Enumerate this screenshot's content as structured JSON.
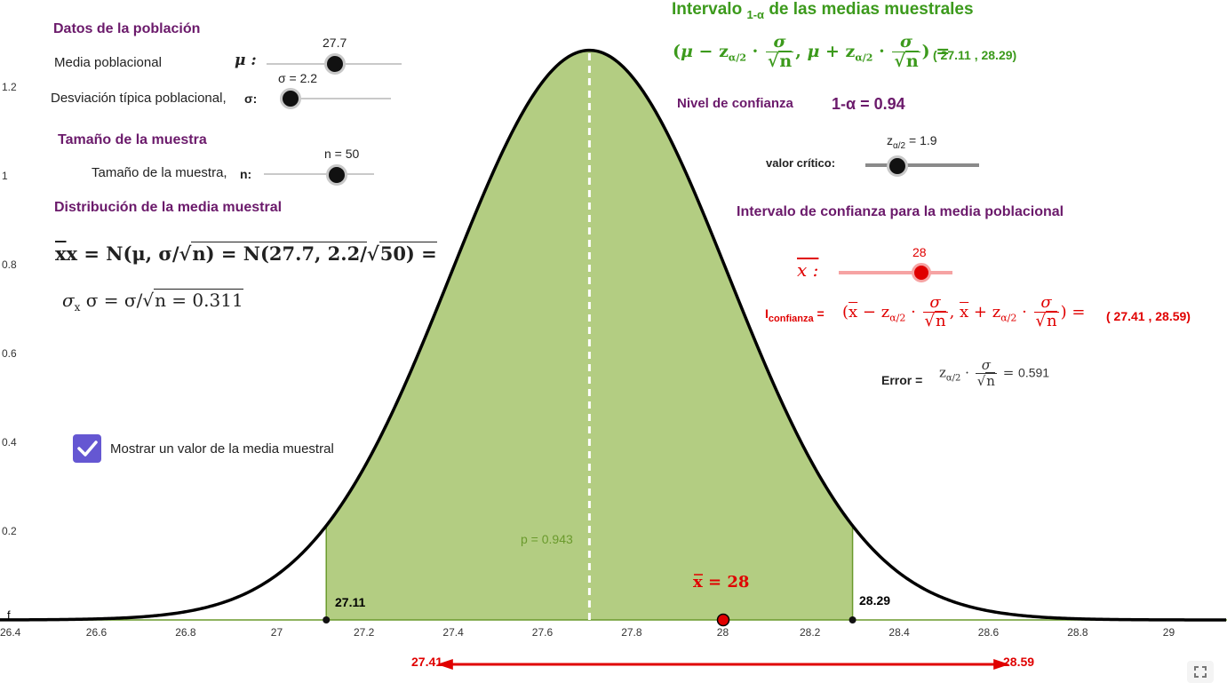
{
  "population": {
    "heading": "Datos de la población",
    "mean_label": "Media poblacional",
    "mean_symbol": "μ :",
    "mean_value": "27.7",
    "sd_label": "Desviación típica poblacional,",
    "sd_symbol": "σ:",
    "sd_value": "σ = 2.2"
  },
  "sample": {
    "heading": "Tamaño de la muestra",
    "n_label": "Tamaño de la muestra,",
    "n_symbol": "n:",
    "n_value": "n = 50"
  },
  "distribution": {
    "heading": "Distribución de la media muestral",
    "formula_lhs": "x = N(μ, σ/",
    "formula_rhs": "n) = N(27.7, 2.2/",
    "formula_tail": "50) =",
    "sigma_formula": "σ = σ/",
    "sigma_value": "n = 0.311",
    "sigma_subscript": "x"
  },
  "checkbox": {
    "label": "Mostrar un valor de la media muestral",
    "checked": true
  },
  "interval": {
    "title_a": "Intervalo",
    "title_sub": "1-α",
    "title_b": "de las medias muestrales",
    "formula_result": "( 27.11 , 28.29)"
  },
  "confidence": {
    "label": "Nivel de confianza",
    "value": "1-α = 0.94",
    "critical_label": "valor crítico:",
    "critical_value_prefix": "z",
    "critical_value_sub": "α/2",
    "critical_value_suffix": "= 1.9"
  },
  "ci": {
    "heading": "Intervalo de confianza para la media poblacional",
    "xbar_label": "x :",
    "xbar_value": "28",
    "i_label": "I",
    "i_sub": "confianza",
    "i_eq": "=",
    "result": "( 27.41 , 28.59)",
    "error_label": "Error =",
    "error_value": "0.591"
  },
  "plot": {
    "p_label": "p = 0.943",
    "xbar_marker_label": "x = 28",
    "left_bound_label": "27.11",
    "right_bound_label": "28.29",
    "ci_left_label": "27.41",
    "ci_right_label": "28.59",
    "f_label": "f",
    "x_ticks": [
      "26.4",
      "26.6",
      "26.8",
      "27",
      "27.2",
      "27.4",
      "27.6",
      "27.8",
      "28",
      "28.2",
      "28.4",
      "28.6",
      "28.8",
      "29"
    ],
    "y_ticks": [
      "1.2",
      "1",
      "0.8",
      "0.6",
      "0.4",
      "0.2"
    ]
  },
  "chart_data": {
    "type": "area",
    "distribution": "normal",
    "mean": 27.7,
    "sd": 0.311,
    "shaded_from": 27.11,
    "shaded_to": 28.29,
    "probability": 0.943,
    "sample_mean": 28,
    "ci": [
      27.41,
      28.59
    ],
    "xlim": [
      26.4,
      29.13
    ],
    "ylim": [
      0,
      1.28
    ]
  },
  "colors": {
    "fill": "#b3cd82",
    "curve": "#000000",
    "purple": "#6b1a6b",
    "green": "#3c9a1c",
    "red": "#e00000",
    "checkbox": "#6557d2"
  }
}
